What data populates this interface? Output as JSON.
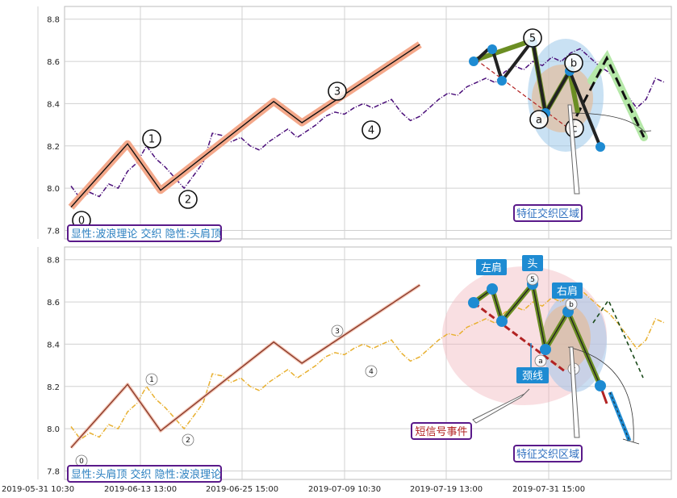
{
  "chart_data": [
    {
      "type": "line",
      "panel": "top",
      "xlabel": "",
      "ylabel": "",
      "ylim": [
        7.76,
        8.86
      ],
      "y_ticks": [
        7.8,
        8.0,
        8.2,
        8.4,
        8.6,
        8.8
      ],
      "grid": true,
      "series": [
        {
          "role": "price",
          "color": "#4b0f7a",
          "style": "dash-dot",
          "x": [
            0,
            2,
            4,
            6,
            8,
            10,
            12,
            14,
            16,
            18,
            20,
            22,
            24,
            26,
            28,
            30,
            32,
            34,
            36,
            38,
            40,
            42,
            44,
            46,
            48,
            50,
            52,
            54,
            56,
            58,
            60,
            62,
            64,
            66,
            68,
            70,
            72,
            74,
            76,
            78,
            80,
            82,
            84,
            86,
            88,
            90,
            92,
            94,
            96,
            98,
            100,
            102,
            104,
            106,
            108,
            110,
            112,
            114,
            116,
            118,
            120,
            122,
            124,
            126
          ],
          "y": [
            8.01,
            7.95,
            7.98,
            7.96,
            8.02,
            8.0,
            8.08,
            8.12,
            8.2,
            8.14,
            8.1,
            8.05,
            8.0,
            8.06,
            8.12,
            8.26,
            8.25,
            8.22,
            8.24,
            8.2,
            8.18,
            8.22,
            8.25,
            8.28,
            8.24,
            8.27,
            8.3,
            8.34,
            8.36,
            8.35,
            8.38,
            8.4,
            8.38,
            8.4,
            8.42,
            8.36,
            8.32,
            8.34,
            8.38,
            8.42,
            8.45,
            8.44,
            8.48,
            8.5,
            8.52,
            8.5,
            8.55,
            8.58,
            8.56,
            8.6,
            8.58,
            8.62,
            8.6,
            8.64,
            8.66,
            8.62,
            8.58,
            8.55,
            8.5,
            8.44,
            8.38,
            8.42,
            8.52,
            8.5
          ]
        },
        {
          "role": "wave",
          "color": "#111111",
          "x": [
            0,
            12,
            19,
            43,
            49,
            74
          ],
          "y": [
            7.91,
            8.21,
            7.99,
            8.41,
            8.31,
            8.68
          ]
        }
      ],
      "wave_labels": [
        "0",
        "1",
        "2",
        "3",
        "4",
        "5",
        "a",
        "b",
        "c"
      ],
      "annotations": [
        "特征交织区域"
      ],
      "legend_box": "显性:波浪理论 交织 隐性:头肩顶"
    },
    {
      "type": "line",
      "panel": "bottom",
      "xlabel": "",
      "ylabel": "",
      "ylim": [
        7.76,
        8.86
      ],
      "y_ticks": [
        7.8,
        8.0,
        8.2,
        8.4,
        8.6,
        8.8
      ],
      "grid": true,
      "x_tick_labels": [
        "2019-05-31 10:30",
        "2019-06-13 13:00",
        "2019-06-25 15:00",
        "2019-07-09 10:30",
        "2019-07-19 13:00",
        "2019-07-31 15:00"
      ],
      "series": [
        {
          "role": "price",
          "color": "#e8b030",
          "style": "dash-dot",
          "x": [
            0,
            2,
            4,
            6,
            8,
            10,
            12,
            14,
            16,
            18,
            20,
            22,
            24,
            26,
            28,
            30,
            32,
            34,
            36,
            38,
            40,
            42,
            44,
            46,
            48,
            50,
            52,
            54,
            56,
            58,
            60,
            62,
            64,
            66,
            68,
            70,
            72,
            74,
            76,
            78,
            80,
            82,
            84,
            86,
            88,
            90,
            92,
            94,
            96,
            98,
            100,
            102,
            104,
            106,
            108,
            110,
            112,
            114,
            116,
            118,
            120,
            122,
            124,
            126
          ],
          "y": [
            8.01,
            7.95,
            7.98,
            7.96,
            8.02,
            8.0,
            8.08,
            8.12,
            8.2,
            8.14,
            8.1,
            8.05,
            8.0,
            8.06,
            8.12,
            8.26,
            8.25,
            8.22,
            8.24,
            8.2,
            8.18,
            8.22,
            8.25,
            8.28,
            8.24,
            8.27,
            8.3,
            8.34,
            8.36,
            8.35,
            8.38,
            8.4,
            8.38,
            8.4,
            8.42,
            8.36,
            8.32,
            8.34,
            8.38,
            8.42,
            8.45,
            8.44,
            8.48,
            8.5,
            8.52,
            8.5,
            8.55,
            8.58,
            8.56,
            8.6,
            8.58,
            8.62,
            8.6,
            8.64,
            8.66,
            8.62,
            8.58,
            8.55,
            8.5,
            8.44,
            8.38,
            8.42,
            8.52,
            8.5
          ]
        },
        {
          "role": "wave",
          "color": "#8b3a2a",
          "x": [
            0,
            12,
            19,
            43,
            49,
            74
          ],
          "y": [
            7.91,
            8.21,
            7.99,
            8.41,
            8.31,
            8.68
          ]
        }
      ],
      "wave_labels": [
        "0",
        "1",
        "2",
        "3",
        "4",
        "5",
        "a",
        "b",
        "c"
      ],
      "pattern_labels": [
        "左肩",
        "头",
        "右肩",
        "颈线"
      ],
      "annotations": [
        "短信号事件",
        "特征交织区域"
      ],
      "legend_box": "显性:头肩顶 交织 隐性:波浪理论"
    }
  ]
}
